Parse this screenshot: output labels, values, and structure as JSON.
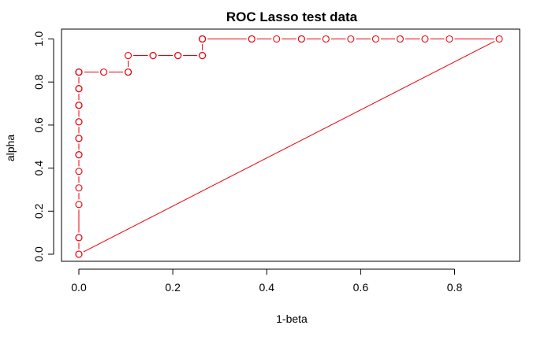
{
  "chart_data": {
    "type": "line",
    "title": "ROC Lasso test data",
    "xlabel": "1-beta",
    "ylabel": "alpha",
    "xlim": [
      0,
      0.9
    ],
    "ylim": [
      0,
      1
    ],
    "xticks": [
      0.0,
      0.2,
      0.4,
      0.6,
      0.8
    ],
    "yticks": [
      0.0,
      0.2,
      0.4,
      0.6,
      0.8,
      1.0
    ],
    "xtick_labels": [
      "0.0",
      "0.2",
      "0.4",
      "0.6",
      "0.8"
    ],
    "ytick_labels": [
      "0.0",
      "0.2",
      "0.4",
      "0.6",
      "0.8",
      "1.0"
    ],
    "grid": false,
    "legend": "none",
    "series": [
      {
        "style": "points-and-lines",
        "color": "#e8000b",
        "marker": "open-circle",
        "x": [
          0,
          0,
          0,
          0,
          0,
          0,
          0,
          0,
          0,
          0,
          0,
          0,
          0,
          0,
          0,
          0,
          0,
          0,
          0,
          0,
          0,
          0,
          0.053,
          0.105,
          0.105,
          0.105,
          0.158,
          0.158,
          0.211,
          0.211,
          0.263,
          0.263,
          0.263,
          0.263,
          0.263,
          0.263,
          0.368,
          0.368,
          0.421,
          0.474,
          0.474,
          0.526,
          0.579,
          0.632,
          0.684,
          0.737,
          0.789,
          0.895,
          0
        ],
        "y": [
          0,
          0.077,
          0.077,
          0.231,
          0.308,
          0.385,
          0.462,
          0.462,
          0.538,
          0.538,
          0.615,
          0.615,
          0.692,
          0.692,
          0.692,
          0.769,
          0.769,
          0.769,
          0.846,
          0.846,
          0.846,
          0.846,
          0.846,
          0.846,
          0.846,
          0.923,
          0.923,
          0.923,
          0.923,
          0.923,
          0.923,
          0.923,
          1,
          1,
          1,
          1,
          1,
          1,
          1,
          1,
          1,
          1,
          1,
          1,
          1,
          1,
          1,
          1,
          0
        ]
      }
    ]
  }
}
